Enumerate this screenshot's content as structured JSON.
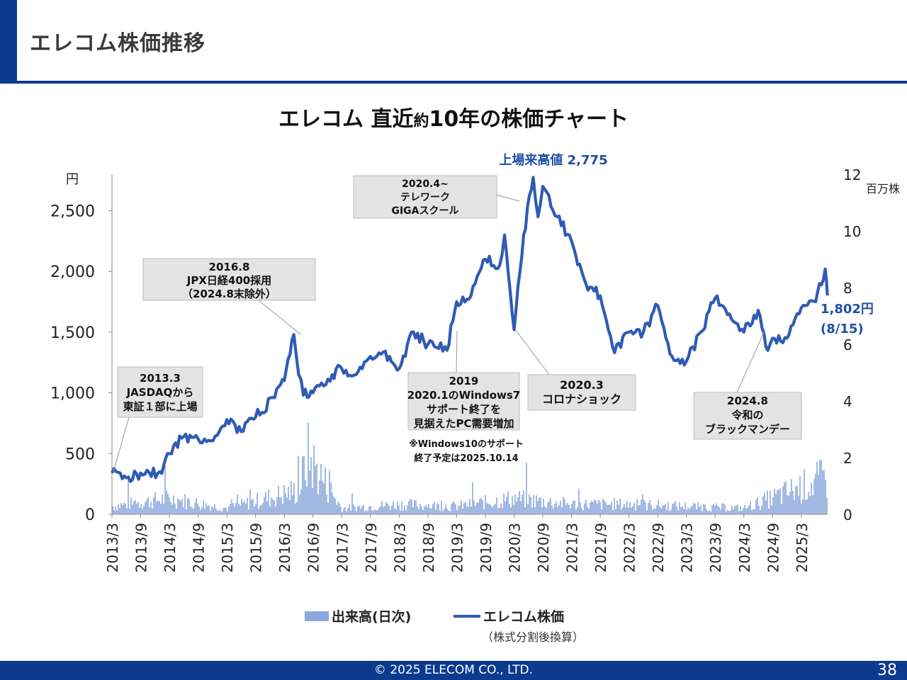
{
  "header": {
    "title": "エレコム株価推移"
  },
  "chart_title": {
    "prefix": "エレコム 直近",
    "small": "約",
    "suffix": "10年の株価チャート"
  },
  "colors": {
    "brand": "#0b3a8f",
    "price_line": "#2f5bb5",
    "volume": "#8aa8dc",
    "annotation_box": "#e3e3e3",
    "highlight_text": "#1f4fa8"
  },
  "chart_data": {
    "type": "line",
    "y_left": {
      "unit": "円",
      "ticks": [
        0,
        500,
        1000,
        1500,
        2000,
        2500
      ],
      "tick_labels": [
        "0",
        "500",
        "1,000",
        "1,500",
        "2,000",
        "2,500"
      ],
      "range": [
        0,
        2800
      ]
    },
    "y_right": {
      "unit": "百万株",
      "ticks": [
        0,
        2,
        4,
        6,
        8,
        10,
        12
      ],
      "tick_labels": [
        "0",
        "2",
        "4",
        "6",
        "8",
        "10",
        "12"
      ],
      "range": [
        0,
        12
      ]
    },
    "x_tick_labels": [
      "2013/3",
      "2013/9",
      "2014/3",
      "2014/9",
      "2015/3",
      "2015/9",
      "2016/3",
      "2016/9",
      "2017/3",
      "2017/9",
      "2018/3",
      "2018/9",
      "2019/3",
      "2019/9",
      "2020/3",
      "2020/9",
      "2021/3",
      "2021/9",
      "2022/3",
      "2022/9",
      "2023/3",
      "2023/9",
      "2024/3",
      "2024/9",
      "2025/3"
    ],
    "grid": false,
    "series": [
      {
        "name": "エレコム株価",
        "x": [
          "2013/3",
          "2013/6",
          "2013/9",
          "2014/1",
          "2014/3",
          "2014/6",
          "2014/9",
          "2015/1",
          "2015/3",
          "2015/6",
          "2015/9",
          "2016/1",
          "2016/3",
          "2016/5",
          "2016/6",
          "2016/7",
          "2016/9",
          "2017/1",
          "2017/3",
          "2017/6",
          "2017/9",
          "2018/1",
          "2018/3",
          "2018/6",
          "2018/9",
          "2019/1",
          "2019/3",
          "2019/6",
          "2019/9",
          "2019/12",
          "2020/1",
          "2020/3",
          "2020/5",
          "2020/7",
          "2020/8",
          "2020/9",
          "2020/12",
          "2021/3",
          "2021/6",
          "2021/9",
          "2021/12",
          "2022/3",
          "2022/6",
          "2022/9",
          "2022/12",
          "2023/3",
          "2023/6",
          "2023/9",
          "2023/12",
          "2024/3",
          "2024/6",
          "2024/8",
          "2024/9",
          "2024/12",
          "2025/3",
          "2025/6",
          "2025/8",
          "2025/8/15"
        ],
        "values": [
          340,
          300,
          340,
          350,
          500,
          640,
          620,
          650,
          780,
          680,
          800,
          960,
          1100,
          1480,
          1150,
          980,
          1000,
          1150,
          1200,
          1150,
          1300,
          1300,
          1200,
          1500,
          1400,
          1350,
          1750,
          1800,
          2100,
          2050,
          2300,
          1520,
          2300,
          2775,
          2450,
          2700,
          2450,
          2250,
          1900,
          1800,
          1330,
          1500,
          1500,
          1720,
          1300,
          1260,
          1500,
          1780,
          1650,
          1500,
          1680,
          1350,
          1450,
          1450,
          1700,
          1750,
          2020,
          1802
        ]
      },
      {
        "name": "出来高(日次)",
        "unit": "百万株",
        "x": [
          "2013/3",
          "2014/3",
          "2015/3",
          "2016/6",
          "2016/8",
          "2017/3",
          "2018/3",
          "2019/3",
          "2020/3",
          "2021/3",
          "2022/3",
          "2023/3",
          "2024/3",
          "2025/8"
        ],
        "values": [
          0.4,
          0.8,
          0.3,
          1.2,
          2.9,
          0.3,
          0.5,
          0.4,
          0.8,
          0.5,
          0.5,
          0.4,
          0.3,
          1.8
        ]
      }
    ]
  },
  "annotations": {
    "ath_label": "上場来高値 2,775",
    "last_price": "1,802円",
    "last_date": "(8/15)",
    "box_2013": [
      "2013.3",
      "JASDAQから",
      "東証１部に上場"
    ],
    "box_2016": [
      "2016.8",
      "JPX日経400採用",
      "（2024.8末除外）"
    ],
    "box_2020_4": [
      "2020.4~",
      "テレワーク",
      "GIGAスクール"
    ],
    "box_2019": [
      "2019",
      "2020.1のWindows7",
      "サポート終了を",
      "見据えたPC需要増加"
    ],
    "note_win10": [
      "※Windows10のサポート",
      "終了予定は2025.10.14"
    ],
    "box_2020_3": [
      "2020.3",
      "コロナショック"
    ],
    "box_2024": [
      "2024.8",
      "令和の",
      "ブラックマンデー"
    ]
  },
  "legend": {
    "volume": "出来高(日次)",
    "price": "エレコム株価",
    "price_note": "（株式分割後換算）"
  },
  "footer": {
    "copyright": "© 2025 ELECOM CO., LTD.",
    "page_number": "38"
  }
}
